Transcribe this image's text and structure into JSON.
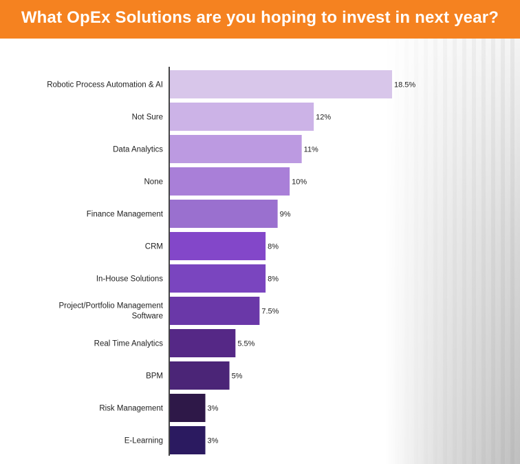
{
  "colors": {
    "banner": "#f58220",
    "banner_text": "#ffffff",
    "axis": "#444444"
  },
  "chart_data": {
    "type": "bar",
    "orientation": "horizontal",
    "title": "What OpEx Solutions are you hoping to invest in next year?",
    "xlabel": "",
    "ylabel": "",
    "xlim": [
      0,
      20
    ],
    "grid": false,
    "categories": [
      "Robotic Process Automation & AI",
      "Not Sure",
      "Data Analytics",
      "None",
      "Finance Management",
      "CRM",
      "In-House Solutions",
      [
        "Project/Portfolio Management",
        "Software"
      ],
      "Real Time Analytics",
      "BPM",
      "Risk Management",
      "E-Learning"
    ],
    "values": [
      18.5,
      12,
      11,
      10,
      9,
      8,
      8,
      7.5,
      5.5,
      5,
      3,
      3
    ],
    "value_labels": [
      "18.5%",
      "12%",
      "11%",
      "10%",
      "9%",
      "8%",
      "8%",
      "7.5%",
      "5.5%",
      "5%",
      "3%",
      "3%"
    ],
    "bar_colors": [
      "#d8c6ea",
      "#ccb3e7",
      "#bc9ae1",
      "#a97fd8",
      "#9a70cf",
      "#8347c9",
      "#7a45bf",
      "#6a38a8",
      "#552886",
      "#4b2577",
      "#2e1848",
      "#2b1a60"
    ]
  }
}
